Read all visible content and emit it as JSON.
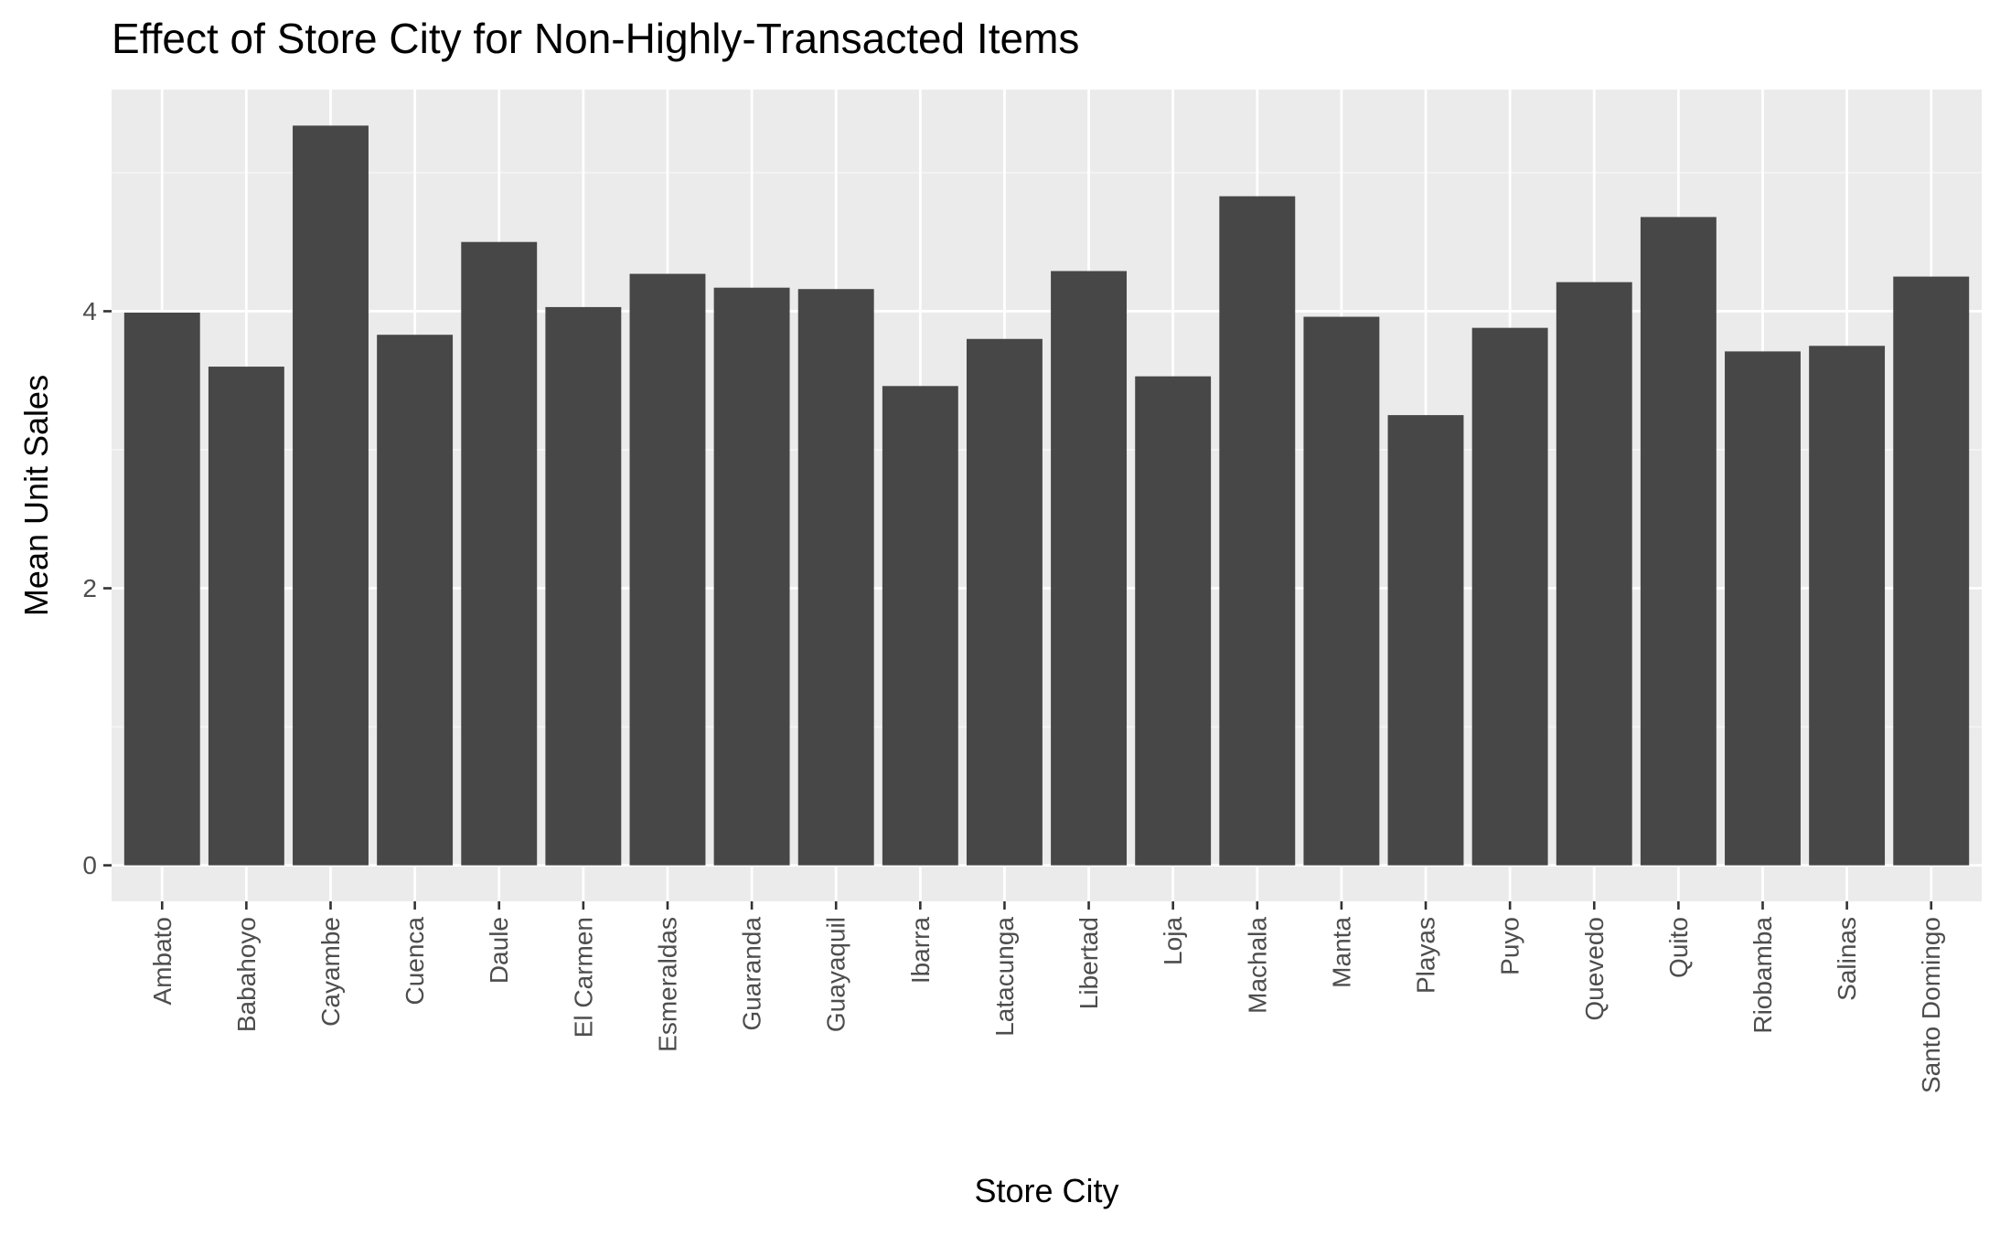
{
  "chart_data": {
    "type": "bar",
    "title": "Effect of Store City for Non-Highly-Transacted Items",
    "xlabel": "Store City",
    "ylabel": "Mean Unit Sales",
    "ylim": [
      -0.26,
      5.6
    ],
    "yticks": [
      0,
      2,
      4
    ],
    "ytick_labels": [
      "0",
      "2",
      "4"
    ],
    "grid": true,
    "categories": [
      "Ambato",
      "Babahoyo",
      "Cayambe",
      "Cuenca",
      "Daule",
      "El Carmen",
      "Esmeraldas",
      "Guaranda",
      "Guayaquil",
      "Ibarra",
      "Latacunga",
      "Libertad",
      "Loja",
      "Machala",
      "Manta",
      "Playas",
      "Puyo",
      "Quevedo",
      "Quito",
      "Riobamba",
      "Salinas",
      "Santo Domingo"
    ],
    "values": [
      3.99,
      3.6,
      5.34,
      3.83,
      4.5,
      4.03,
      4.27,
      4.17,
      4.16,
      3.46,
      3.8,
      4.29,
      3.53,
      4.83,
      3.96,
      3.25,
      3.88,
      4.21,
      4.68,
      3.71,
      3.75,
      4.25
    ],
    "colors": {
      "panel_background": "#ebebeb",
      "grid_major": "#ffffff",
      "grid_minor": "#f7f7f7",
      "bar_fill": "#474747",
      "tick_label": "#4d4d4d",
      "tick_mark": "#333333",
      "text": "#000000"
    }
  }
}
